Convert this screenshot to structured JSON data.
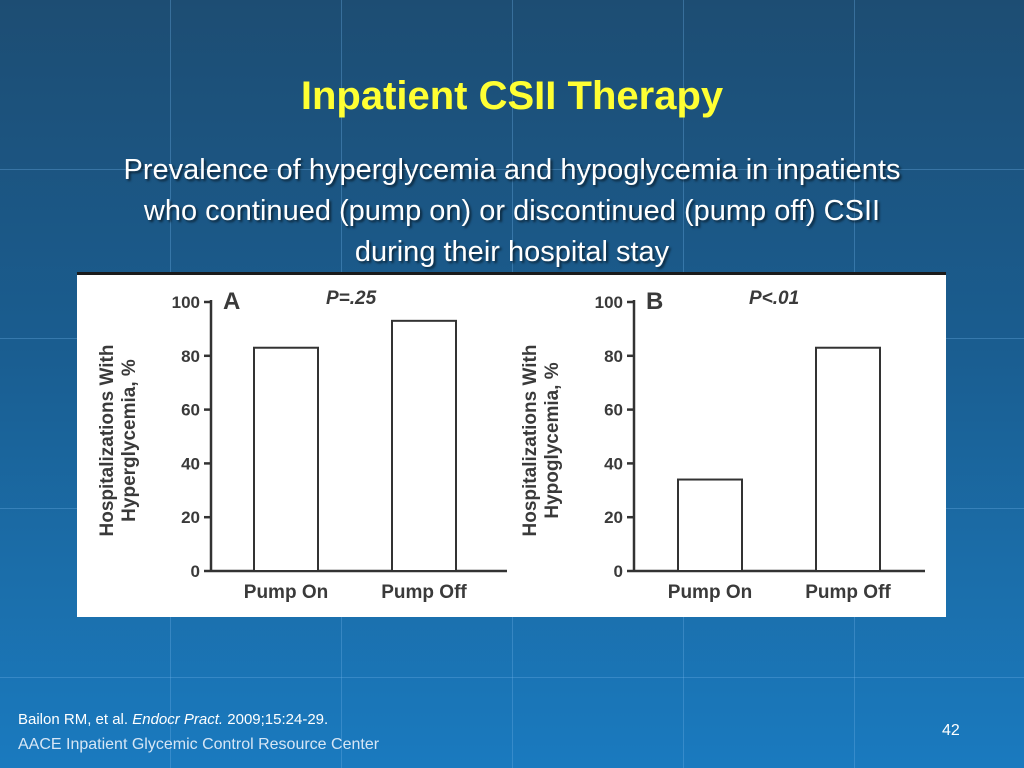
{
  "slide": {
    "title": "Inpatient CSII Therapy",
    "subtitle": "Prevalence of hyperglycemia and hypoglycemia in inpatients who continued (pump on) or discontinued (pump off) CSII during their hospital stay",
    "citation_authors": "Bailon RM, et al.",
    "citation_journal": "Endocr Pract.",
    "citation_details": "2009;15:24-29.",
    "footer_org": "AACE Inpatient Glycemic Control Resource Center",
    "slide_number": "42",
    "colors": {
      "title": "#ffff33",
      "text": "#ffffff"
    }
  },
  "chart_data": [
    {
      "type": "bar",
      "panel": "A",
      "annotation": "P=.25",
      "ylabel_line1": "Hospitalizations With",
      "ylabel_line2": "Hyperglycemia, %",
      "categories": [
        "Pump On",
        "Pump Off"
      ],
      "values": [
        83,
        93
      ],
      "ylim": [
        0,
        100
      ],
      "yticks": [
        0,
        20,
        40,
        60,
        80,
        100
      ],
      "grid": false
    },
    {
      "type": "bar",
      "panel": "B",
      "annotation": "P<.01",
      "ylabel_line1": "Hospitalizations With",
      "ylabel_line2": "Hypoglycemia, %",
      "categories": [
        "Pump On",
        "Pump Off"
      ],
      "values": [
        34,
        83
      ],
      "ylim": [
        0,
        100
      ],
      "yticks": [
        0,
        20,
        40,
        60,
        80,
        100
      ],
      "grid": false
    }
  ]
}
